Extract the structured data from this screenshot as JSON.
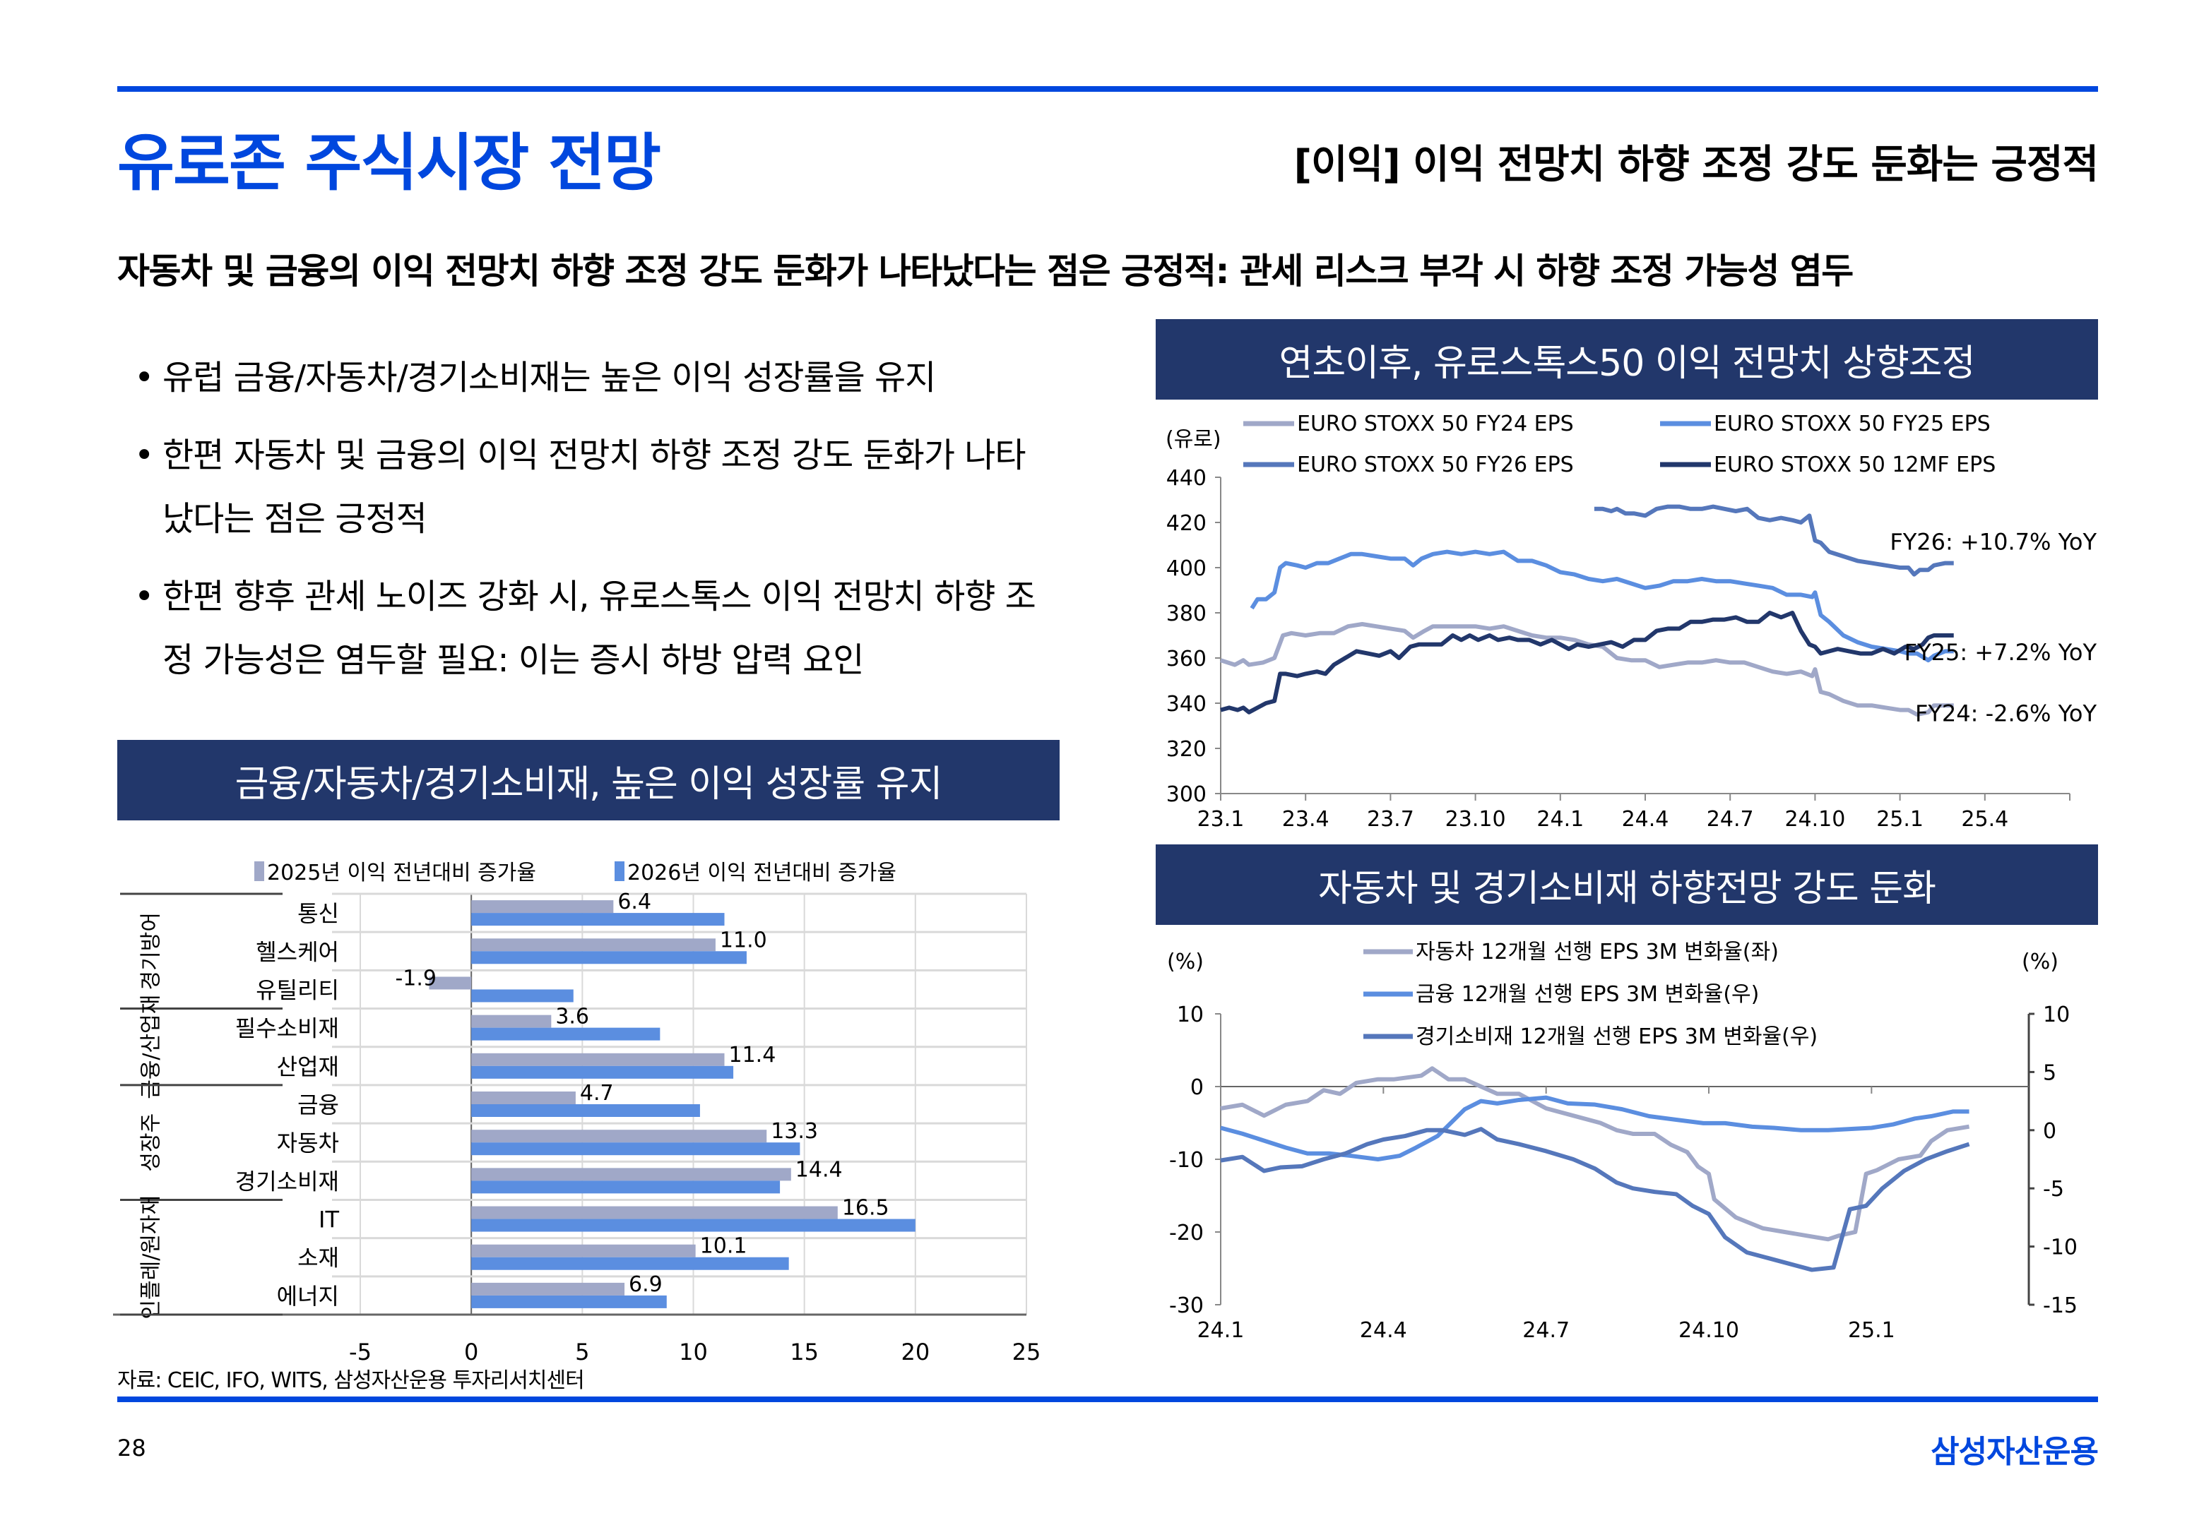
{
  "header": {
    "page_title": "유로존 주식시장 전망",
    "section_title": "[이익] 이익 전망치 하향 조정 강도 둔화는 긍정적",
    "headline": "자동차 및 금융의 이익 전망치 하향 조정 강도 둔화가 나타났다는 점은 긍정적: 관세 리스크 부각 시 하향 조정 가능성 염두"
  },
  "bullets": [
    {
      "symbol": "•",
      "text": "유럽 금융/자동차/경기소비재는 높은 이익 성장률을 유지"
    },
    {
      "symbol": "•",
      "text": "한편 자동차 및 금융의 이익 전망치 하향 조정 강도 둔화가 나타났다는 점은 긍정적"
    },
    {
      "symbol": "•",
      "text": "한편 향후 관세 노이즈 강화 시, 유로스톡스 이익 전망치 하향 조정 가능성은 염두할 필요: 이는 증시 하방 압력 요인"
    }
  ],
  "panels": {
    "eps_title": "연초이후, 유로스톡스50 이익 전망치 상향조정",
    "growth_title": "금융/자동차/경기소비재, 높은 이익 성장률 유지",
    "revision_title": "자동차 및 경기소비재 하향전망 강도 둔화"
  },
  "footer": {
    "source": "자료: CEIC, IFO, WITS, 삼성자산운용 투자리서치센터",
    "page_number": "28",
    "brand": "삼성자산운용"
  },
  "colors": {
    "brand_blue": "#0047de",
    "panel_navy": "#22376b",
    "fy24": "#a0a8c8",
    "fy25": "#5b8ee0",
    "fy26": "#5577bb",
    "mf12": "#22376b",
    "bar2025": "#a0a8c8",
    "bar2026": "#5b8ee0"
  },
  "chart_data": [
    {
      "type": "line",
      "title": "연초이후, 유로스톡스50 이익 전망치 상향조정",
      "ylabel": "(유로)",
      "ylim": [
        300,
        440
      ],
      "yticks": [
        "300",
        "320",
        "340",
        "360",
        "380",
        "400",
        "420",
        "440"
      ],
      "xlim": [
        0,
        30
      ],
      "xticks": [
        {
          "x": 0,
          "label": "23.1"
        },
        {
          "x": 3,
          "label": "23.4"
        },
        {
          "x": 6,
          "label": "23.7"
        },
        {
          "x": 9,
          "label": "23.10"
        },
        {
          "x": 12,
          "label": "24.1"
        },
        {
          "x": 15,
          "label": "24.4"
        },
        {
          "x": 18,
          "label": "24.7"
        },
        {
          "x": 21,
          "label": "24.10"
        },
        {
          "x": 24,
          "label": "25.1"
        },
        {
          "x": 27,
          "label": "25.4"
        }
      ],
      "legend_position": "top",
      "annotations": [
        "FY26: +10.7% YoY",
        "FY25: +7.2% YoY",
        "FY24: -2.6% YoY"
      ],
      "series": [
        {
          "name": "EURO STOXX 50 FY24 EPS",
          "color_key": "fy24",
          "x": [
            0,
            0.5,
            0.8,
            1,
            1.5,
            1.9,
            2.2,
            2.5,
            3,
            3.5,
            4,
            4.5,
            5,
            5.5,
            6,
            6.5,
            6.8,
            7.2,
            7.5,
            8,
            8.5,
            9,
            9.5,
            10,
            10.5,
            11,
            11.5,
            12,
            12.5,
            13,
            13.5,
            14,
            14.5,
            15,
            15.5,
            16,
            16.5,
            17,
            17.5,
            18,
            18.5,
            19,
            19.5,
            20,
            20.5,
            20.9,
            21,
            21.2,
            21.5,
            22,
            22.5,
            23,
            23.5,
            24,
            24.3,
            24.6,
            25,
            25.2,
            25.6,
            25.9
          ],
          "y": [
            359,
            357,
            359,
            357,
            358,
            360,
            370,
            371,
            370,
            371,
            371,
            374,
            375,
            374,
            373,
            372,
            369,
            372,
            374,
            374,
            374,
            374,
            373,
            374,
            372,
            370,
            369,
            369,
            368,
            366,
            365,
            360,
            359,
            359,
            356,
            357,
            358,
            358,
            359,
            358,
            358,
            356,
            354,
            353,
            354,
            352,
            355,
            345,
            344,
            341,
            339,
            339,
            338,
            337,
            337,
            335,
            336,
            339,
            339,
            339
          ]
        },
        {
          "name": "EURO STOXX 50 FY25 EPS",
          "color_key": "fy25",
          "x": [
            1.1,
            1.3,
            1.6,
            1.9,
            2.1,
            2.3,
            2.7,
            3,
            3.4,
            3.8,
            4.2,
            4.6,
            5,
            5.5,
            6,
            6.5,
            6.8,
            7.1,
            7.5,
            8,
            8.5,
            9,
            9.5,
            10,
            10.5,
            11,
            11.5,
            12,
            12.5,
            13,
            13.5,
            14,
            14.5,
            15,
            15.5,
            16,
            16.5,
            17,
            17.5,
            18,
            18.5,
            19,
            19.5,
            20,
            20.5,
            20.9,
            21,
            21.2,
            21.5,
            22,
            22.5,
            23,
            23.5,
            24,
            24.3,
            24.6,
            25,
            25.2,
            25.6,
            25.9
          ],
          "y": [
            382,
            386,
            386,
            389,
            400,
            402,
            401,
            400,
            402,
            402,
            404,
            406,
            406,
            405,
            404,
            404,
            401,
            404,
            406,
            407,
            406,
            407,
            406,
            407,
            403,
            403,
            401,
            398,
            397,
            395,
            394,
            395,
            393,
            391,
            392,
            394,
            394,
            395,
            394,
            394,
            393,
            392,
            391,
            388,
            388,
            387,
            389,
            379,
            376,
            370,
            367,
            365,
            364,
            363,
            362,
            362,
            359,
            361,
            363,
            363
          ]
        },
        {
          "name": "EURO STOXX 50 FY26 EPS",
          "color_key": "fy26",
          "x": [
            13.2,
            13.5,
            13.8,
            14,
            14.3,
            14.6,
            15,
            15.4,
            15.8,
            16.2,
            16.6,
            17,
            17.4,
            17.8,
            18.2,
            18.6,
            19,
            19.4,
            19.8,
            20.2,
            20.5,
            20.8,
            21,
            21.2,
            21.5,
            22,
            22.5,
            23,
            23.5,
            24,
            24.3,
            24.5,
            24.7,
            25,
            25.2,
            25.6,
            25.9
          ],
          "y": [
            426,
            426,
            425,
            426,
            424,
            424,
            423,
            426,
            427,
            427,
            426,
            426,
            427,
            426,
            425,
            426,
            422,
            421,
            422,
            421,
            420,
            423,
            412,
            411,
            407,
            405,
            403,
            402,
            401,
            400,
            400,
            397,
            399,
            399,
            401,
            402,
            402
          ]
        },
        {
          "name": "EURO STOXX 50 12MF EPS",
          "color_key": "mf12",
          "x": [
            0,
            0.3,
            0.6,
            0.8,
            1,
            1.3,
            1.6,
            1.9,
            2.1,
            2.3,
            2.7,
            3,
            3.4,
            3.7,
            4,
            4.4,
            4.8,
            5.2,
            5.6,
            6,
            6.3,
            6.7,
            7,
            7.4,
            7.8,
            8.2,
            8.5,
            8.8,
            9.1,
            9.5,
            9.8,
            10.2,
            10.5,
            10.9,
            11.3,
            11.7,
            12,
            12.3,
            12.6,
            13,
            13.4,
            13.8,
            14.2,
            14.6,
            15,
            15.4,
            15.8,
            16.2,
            16.6,
            17,
            17.4,
            17.8,
            18.2,
            18.6,
            19,
            19.4,
            19.8,
            20.2,
            20.5,
            20.8,
            21,
            21.2,
            21.5,
            21.8,
            22.2,
            22.6,
            23,
            23.4,
            23.8,
            24.2,
            24.5,
            24.8,
            25,
            25.2,
            25.6,
            25.9
          ],
          "y": [
            337,
            338,
            337,
            338,
            336,
            338,
            340,
            341,
            353,
            353,
            352,
            353,
            354,
            353,
            357,
            360,
            363,
            362,
            361,
            363,
            360,
            365,
            366,
            366,
            366,
            370,
            368,
            370,
            368,
            370,
            368,
            369,
            368,
            368,
            366,
            368,
            366,
            364,
            366,
            365,
            366,
            367,
            365,
            368,
            368,
            372,
            373,
            373,
            376,
            376,
            377,
            377,
            378,
            376,
            376,
            380,
            378,
            380,
            372,
            366,
            365,
            362,
            363,
            364,
            363,
            362,
            362,
            364,
            362,
            365,
            364,
            366,
            369,
            370,
            370,
            370
          ]
        }
      ]
    },
    {
      "type": "bar",
      "orientation": "horizontal",
      "title": "금융/자동차/경기소비재, 높은 이익 성장률 유지",
      "xlim": [
        -5,
        25
      ],
      "xticks": [
        "-5",
        "0",
        "5",
        "10",
        "15",
        "20",
        "25"
      ],
      "legend_position": "top",
      "groups": [
        {
          "label": "경기방어",
          "categories": [
            "통신",
            "헬스케어",
            "유틸리티"
          ]
        },
        {
          "label": "금융/산업재",
          "categories": [
            "필수소비재",
            "산업재"
          ]
        },
        {
          "label": "성장주",
          "categories": [
            "금융",
            "자동차",
            "경기소비재"
          ]
        },
        {
          "label": "인플레/원자재",
          "categories": [
            "IT",
            "소재",
            "에너지"
          ]
        }
      ],
      "categories": [
        "통신",
        "헬스케어",
        "유틸리티",
        "필수소비재",
        "산업재",
        "금융",
        "자동차",
        "경기소비재",
        "IT",
        "소재",
        "에너지"
      ],
      "series": [
        {
          "name": "2025년 이익 전년대비 증가율",
          "color_key": "bar2025",
          "values": [
            6.4,
            11.0,
            -1.9,
            3.6,
            11.4,
            4.7,
            13.3,
            14.4,
            16.5,
            10.1,
            6.9
          ],
          "labels": [
            "6.4",
            "11.0",
            "-1.9",
            "3.6",
            "11.4",
            "4.7",
            "13.3",
            "14.4",
            "16.5",
            "10.1",
            "6.9"
          ]
        },
        {
          "name": "2026년 이익 전년대비 증가율",
          "color_key": "bar2026",
          "values": [
            11.4,
            12.4,
            4.6,
            8.5,
            11.8,
            10.3,
            14.8,
            13.9,
            20.0,
            14.3,
            8.8
          ]
        }
      ]
    },
    {
      "type": "line",
      "title": "자동차 및 경기소비재 하향전망 강도 둔화",
      "ylabel_left": "(%)",
      "ylabel_right": "(%)",
      "ylim_left": [
        -30,
        10
      ],
      "ylim_right": [
        -15,
        10
      ],
      "yticks_left": [
        "-30",
        "-20",
        "-10",
        "0",
        "10"
      ],
      "yticks_right": [
        "-15",
        "-10",
        "-5",
        "0",
        "5",
        "10"
      ],
      "xlim": [
        0,
        15
      ],
      "xticks": [
        {
          "x": 0,
          "label": "24.1"
        },
        {
          "x": 3,
          "label": "24.4"
        },
        {
          "x": 6,
          "label": "24.7"
        },
        {
          "x": 9,
          "label": "24.10"
        },
        {
          "x": 12,
          "label": "25.1"
        }
      ],
      "legend_position": "top",
      "series": [
        {
          "name": "자동차 12개월 선행 EPS 3M 변화율(좌)",
          "axis": "left",
          "color_key": "fy24",
          "x": [
            0,
            0.4,
            0.8,
            1.2,
            1.6,
            1.9,
            2.2,
            2.5,
            2.9,
            3.2,
            3.7,
            3.9,
            4.2,
            4.5,
            4.8,
            5.1,
            5.5,
            6.0,
            6.5,
            7.0,
            7.3,
            7.6,
            8.0,
            8.3,
            8.6,
            8.8,
            9.0,
            9.1,
            9.5,
            10.0,
            10.4,
            10.8,
            11.2,
            11.4,
            11.7,
            11.9,
            12.1,
            12.5,
            12.9,
            13.1,
            13.4,
            13.8
          ],
          "y": [
            -3,
            -2.5,
            -4,
            -2.5,
            -2,
            -0.5,
            -1,
            0.5,
            1,
            1,
            1.5,
            2.5,
            1,
            1,
            0,
            -1,
            -1,
            -3,
            -4,
            -5,
            -6,
            -6.5,
            -6.5,
            -8,
            -9,
            -11,
            -12,
            -15.5,
            -18,
            -19.5,
            -20,
            -20.5,
            -21,
            -20.5,
            -20,
            -12,
            -11.5,
            -10,
            -9.5,
            -7.5,
            -6,
            -5.5
          ]
        },
        {
          "name": "금융 12개월 선행 EPS 3M 변화율(우)",
          "axis": "right",
          "color_key": "fy25",
          "x": [
            0,
            0.4,
            0.8,
            1.2,
            1.6,
            2.0,
            2.4,
            2.9,
            3.3,
            3.6,
            4.0,
            4.5,
            4.8,
            5.1,
            5.5,
            6.0,
            6.4,
            6.9,
            7.4,
            7.9,
            8.4,
            8.9,
            9.3,
            9.8,
            10.2,
            10.7,
            11.2,
            11.6,
            12.0,
            12.4,
            12.8,
            13.1,
            13.5,
            13.8
          ],
          "y": [
            0.2,
            -0.3,
            -0.9,
            -1.5,
            -2.0,
            -2.0,
            -2.2,
            -2.5,
            -2.2,
            -1.5,
            -0.5,
            1.8,
            2.5,
            2.3,
            2.6,
            2.8,
            2.3,
            2.2,
            1.8,
            1.2,
            0.9,
            0.6,
            0.6,
            0.3,
            0.2,
            0,
            0,
            0.1,
            0.2,
            0.5,
            1.0,
            1.2,
            1.6,
            1.6
          ]
        },
        {
          "name": "경기소비재 12개월 선행 EPS 3M 변화율(우)",
          "axis": "right",
          "color_key": "fy26",
          "x": [
            0,
            0.4,
            0.8,
            1.1,
            1.5,
            1.9,
            2.3,
            2.7,
            3.0,
            3.4,
            3.8,
            4.1,
            4.5,
            4.8,
            5.1,
            5.5,
            6.0,
            6.5,
            6.9,
            7.3,
            7.6,
            8.0,
            8.4,
            8.7,
            9.0,
            9.3,
            9.7,
            10.1,
            10.5,
            10.9,
            11.3,
            11.6,
            11.9,
            12.2,
            12.6,
            13.0,
            13.4,
            13.8
          ],
          "y": [
            -2.6,
            -2.3,
            -3.5,
            -3.2,
            -3.1,
            -2.5,
            -2.0,
            -1.2,
            -0.8,
            -0.5,
            0,
            0,
            -0.4,
            0.1,
            -0.8,
            -1.2,
            -1.8,
            -2.5,
            -3.3,
            -4.5,
            -5.0,
            -5.3,
            -5.5,
            -6.5,
            -7.2,
            -9.2,
            -10.5,
            -11,
            -11.5,
            -12,
            -11.8,
            -6.8,
            -6.5,
            -5.0,
            -3.5,
            -2.5,
            -1.8,
            -1.2
          ]
        }
      ]
    }
  ]
}
